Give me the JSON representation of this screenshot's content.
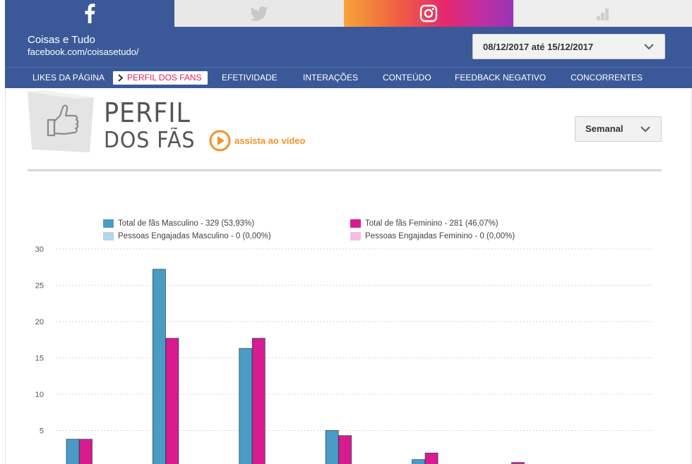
{
  "social_tabs": [
    {
      "id": "facebook",
      "icon": "facebook-icon"
    },
    {
      "id": "twitter",
      "icon": "twitter-icon"
    },
    {
      "id": "instagram",
      "icon": "instagram-icon"
    },
    {
      "id": "other",
      "icon": "bar-chart-icon"
    }
  ],
  "header": {
    "page_name": "Coisas e Tudo",
    "page_url": "facebook.com/coisasetudo/",
    "date_range": "08/12/2017 até 15/12/2017"
  },
  "nav": {
    "items": [
      {
        "label": "LIKES DA PÁGINA"
      },
      {
        "label": "PERFIL DOS FANS"
      },
      {
        "label": "EFETIVIDADE"
      },
      {
        "label": "INTERAÇÕES"
      },
      {
        "label": "CONTEÚDO"
      },
      {
        "label": "FEEDBACK NEGATIVO"
      },
      {
        "label": "CONCORRENTES"
      }
    ],
    "active_index": 1
  },
  "section": {
    "title_line1": "PERFIL",
    "title_line2": "DOS FÃS",
    "video_link": "assista ao vídeo",
    "period": "Semanal",
    "icon": "thumbs-up-icon"
  },
  "chart_data": {
    "type": "bar",
    "legend_placement": "top",
    "grid": true,
    "ylim": [
      0,
      30
    ],
    "yticks": [
      "30",
      "25",
      "20",
      "15",
      "10",
      "5"
    ],
    "categories": [
      "",
      "",
      "",
      "",
      "",
      ""
    ],
    "series": [
      {
        "name": "Total de fãs Masculino - 329 (53,93%)",
        "color": "#4a9bc5",
        "values": [
          3.8,
          27.2,
          16.3,
          5.0,
          1.0,
          0.3
        ]
      },
      {
        "name": "Total de fãs Feminino - 281 (46,07%)",
        "color": "#d81b8f",
        "values": [
          3.8,
          17.7,
          17.7,
          4.3,
          1.9,
          0.6
        ]
      },
      {
        "name": "Pessoas Engajadas Masculino - 0 (0,00%)",
        "color": "#b3d6ea",
        "values": [
          0,
          0,
          0,
          0,
          0,
          0
        ]
      },
      {
        "name": "Pessoas Engajadas Feminino - 0 (0,00%)",
        "color": "#f6bfe1",
        "values": [
          0,
          0,
          0,
          0,
          0,
          0
        ]
      }
    ]
  }
}
